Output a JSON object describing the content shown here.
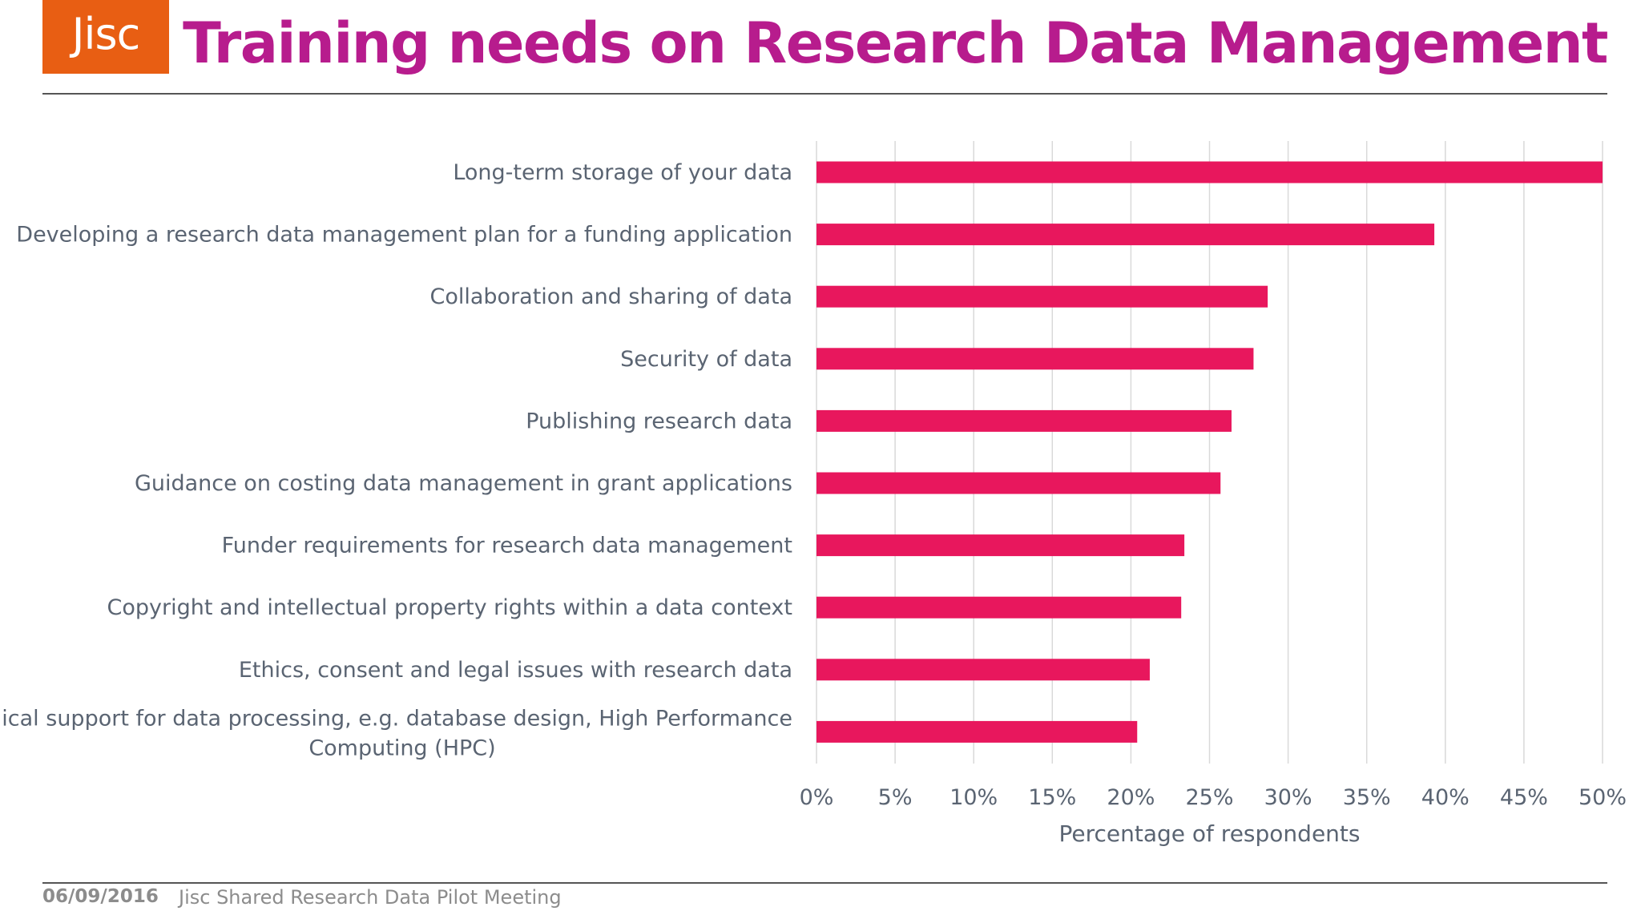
{
  "header": {
    "logo_text": "Jisc",
    "title": "Training needs on Research Data Management"
  },
  "footer": {
    "date": "06/09/2016",
    "meeting": "Jisc Shared Research Data Pilot Meeting"
  },
  "colors": {
    "bar": "#e8175d",
    "title": "#b71c8d",
    "logo_bg": "#e85e13",
    "grid": "#d9d9d9",
    "label": "#5a6472"
  },
  "chart_data": {
    "type": "bar",
    "orientation": "horizontal",
    "categories": [
      "Long-term storage of your data",
      "Developing a research data management plan for a funding application",
      "Collaboration and sharing of data",
      "Security of data",
      "Publishing research data",
      "Guidance on costing data management in grant applications",
      "Funder requirements for research data management",
      "Copyright and intellectual property rights within a data context",
      "Ethics, consent and legal issues with research data",
      "Technical support for data processing, e.g. database design, High Performance Computing (HPC)"
    ],
    "values": [
      50.0,
      39.3,
      28.7,
      27.8,
      26.4,
      25.7,
      23.4,
      23.2,
      21.2,
      20.4
    ],
    "xlim": [
      0,
      50
    ],
    "xticks": [
      0,
      5,
      10,
      15,
      20,
      25,
      30,
      35,
      40,
      45,
      50
    ],
    "xtick_labels": [
      "0%",
      "5%",
      "10%",
      "15%",
      "20%",
      "25%",
      "30%",
      "35%",
      "40%",
      "45%",
      "50%"
    ],
    "xlabel": "Percentage of respondents",
    "ylabel": "",
    "grid": "vertical",
    "legend": "none"
  }
}
